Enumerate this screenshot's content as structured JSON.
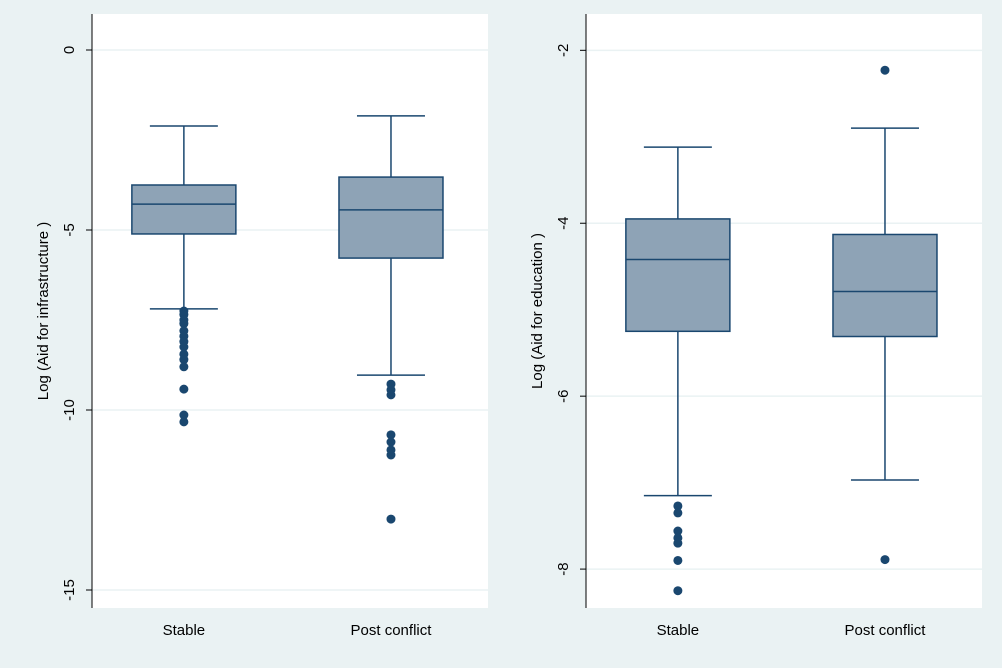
{
  "chart_data": [
    {
      "type": "box",
      "ylabel": "Log  (Aid for infrastructure )",
      "categories": [
        "Stable",
        "Post conflict"
      ],
      "boxes": [
        {
          "whislo": -7.19,
          "q1": -5.11,
          "med": -4.28,
          "q3": -3.75,
          "whishi": -2.11,
          "fliers": [
            -7.25,
            -7.35,
            -7.5,
            -7.6,
            -7.8,
            -7.95,
            -8.1,
            -8.25,
            -8.45,
            -8.6,
            -8.8,
            -9.42,
            -10.14,
            -10.33
          ]
        },
        {
          "whislo": -9.03,
          "q1": -5.78,
          "med": -4.44,
          "q3": -3.53,
          "whishi": -1.83,
          "fliers": [
            -9.28,
            -9.44,
            -9.58,
            -10.69,
            -10.89,
            -11.11,
            -11.25,
            -13.03
          ]
        }
      ],
      "color": "#8ea3b6",
      "edgecolor": "#1a476f",
      "ylim": [
        -15.5,
        1
      ],
      "yticks": [
        0,
        -5,
        -10,
        -15
      ],
      "grid": true
    },
    {
      "type": "box",
      "ylabel": "Log  (Aid for education )",
      "categories": [
        "Stable",
        "Post conflict"
      ],
      "boxes": [
        {
          "whislo": -7.15,
          "q1": -5.25,
          "med": -4.42,
          "q3": -3.95,
          "whishi": -3.12,
          "fliers": [
            -7.27,
            -7.35,
            -7.56,
            -7.64,
            -7.7,
            -7.9,
            -8.25
          ]
        },
        {
          "whislo": -6.97,
          "q1": -5.31,
          "med": -4.79,
          "q3": -4.13,
          "whishi": -2.9,
          "fliers": [
            -2.23,
            -7.89
          ]
        }
      ],
      "color": "#8ea3b6",
      "edgecolor": "#1a476f",
      "ylim": [
        -8.45,
        -1.58
      ],
      "yticks": [
        -2,
        -4,
        -6,
        -8
      ],
      "grid": true
    }
  ]
}
